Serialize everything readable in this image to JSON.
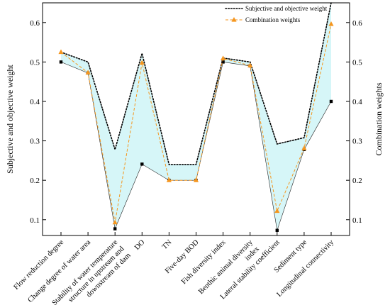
{
  "chart_data": {
    "type": "line",
    "categories": [
      "Flow reduction degree",
      "Change degree of water area",
      "Stability of water temperature structure in upstream and downstream of dam",
      "DO",
      "TN",
      "Five-day BOD",
      "Fish diversity index",
      "Benthic animal diversity index",
      "Lateral stability coefficient",
      "Sediment type",
      "Longitudinal connectivity"
    ],
    "category_label_lines": [
      [
        "Flow reduction degree"
      ],
      [
        "Change degree of water area"
      ],
      [
        "Stability of water temperature",
        "structure in upstream and",
        "downstream of dam"
      ],
      [
        "DO"
      ],
      [
        "TN"
      ],
      [
        "Five-day BOD"
      ],
      [
        "Fish diversity index"
      ],
      [
        "Benthic animal diversity",
        "index"
      ],
      [
        "Lateral stability coefficient"
      ],
      [
        "Sediment type"
      ],
      [
        "Longitudinal connectivity"
      ]
    ],
    "series": [
      {
        "name": "Subjective and objective weight",
        "role": "upper bound",
        "color": "#000000",
        "style": "dotted",
        "values": [
          0.525,
          0.5,
          0.278,
          0.522,
          0.24,
          0.24,
          0.51,
          0.5,
          0.292,
          0.308,
          0.65
        ]
      },
      {
        "name": "",
        "role": "lower bound",
        "color": "#000000",
        "style": "square-markers",
        "values": [
          0.5,
          0.472,
          0.077,
          0.241,
          0.2,
          0.2,
          0.5,
          0.49,
          0.073,
          0.278,
          0.4
        ]
      },
      {
        "name": "Combination weights",
        "color": "#f5961e",
        "style": "dashed-triangle",
        "values": [
          0.525,
          0.473,
          0.093,
          0.498,
          0.2,
          0.2,
          0.509,
          0.491,
          0.122,
          0.281,
          0.596
        ]
      }
    ],
    "fill_between_color": "#d6f6f8",
    "ylabel_left": "Subjective and objective weight",
    "ylabel_right": "Combination weights",
    "ylim": [
      0.06,
      0.65
    ],
    "yticks": [
      "0.1",
      "0.2",
      "0.3",
      "0.4",
      "0.5",
      "0.6"
    ],
    "ytick_values": [
      0.1,
      0.2,
      0.3,
      0.4,
      0.5,
      0.6
    ],
    "legend_position": "top-right",
    "grid": false
  }
}
